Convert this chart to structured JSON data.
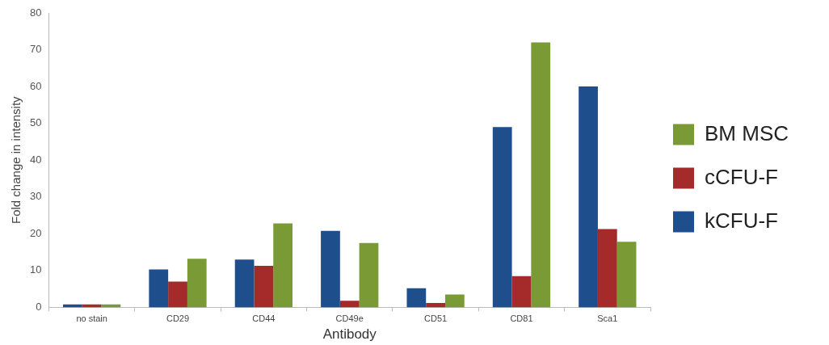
{
  "chart_data": {
    "type": "bar",
    "xlabel": "Antibody",
    "ylabel": "Fold change in intensity",
    "categories": [
      "no stain",
      "CD29",
      "CD44",
      "CD49e",
      "CD51",
      "CD81",
      "Sca1"
    ],
    "series": [
      {
        "name": "kCFU-F",
        "color": "#1f4e8c",
        "values": [
          0.8,
          10.3,
          13,
          20.8,
          5.2,
          49,
          60
        ]
      },
      {
        "name": "cCFU-F",
        "color": "#a52a2a",
        "values": [
          0.8,
          7,
          11.3,
          1.8,
          1.2,
          8.5,
          21.3
        ]
      },
      {
        "name": "BM MSC",
        "color": "#7a9a35",
        "values": [
          0.8,
          13.2,
          22.8,
          17.5,
          3.5,
          72,
          17.8
        ]
      }
    ],
    "ylim": [
      0,
      80
    ],
    "yticks": [
      0,
      10,
      20,
      30,
      40,
      50,
      60,
      70,
      80
    ],
    "grid": false,
    "legend": "right"
  }
}
